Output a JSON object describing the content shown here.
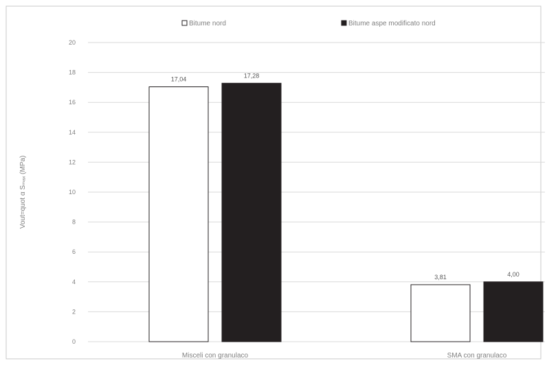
{
  "chart_data": {
    "type": "bar",
    "title": "",
    "ylabel": "Vout=quot α Sₘₐₓ (MPa)",
    "xlabel": "",
    "categories": [
      "Misceli con granulaco",
      "SMA con granulaco"
    ],
    "series": [
      {
        "name": "Bitume nord",
        "values": [
          17.04,
          3.81
        ],
        "labels": [
          "17,04",
          "3,81"
        ],
        "color": "#ffffff"
      },
      {
        "name": "Bitume aspe modificato nord",
        "values": [
          17.28,
          4.0
        ],
        "labels": [
          "17,28",
          "4,00"
        ],
        "color": "#231f20"
      }
    ],
    "ylim": [
      0,
      20
    ],
    "yticks": [
      0,
      2,
      4,
      6,
      8,
      10,
      12,
      14,
      16,
      18,
      20
    ],
    "grid": true,
    "legend_position": "top"
  }
}
